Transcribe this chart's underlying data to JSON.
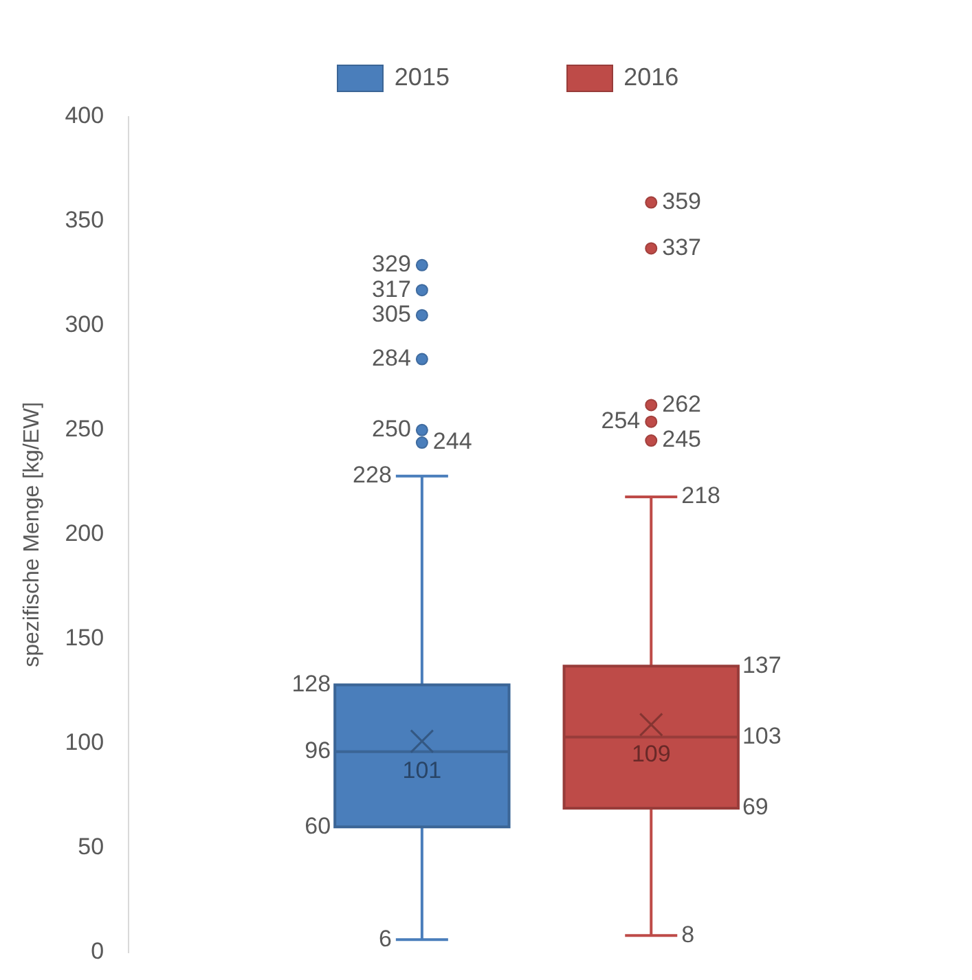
{
  "chart_data": {
    "type": "box",
    "categories": [
      "2015",
      "2016"
    ],
    "colors": [
      "#4a7ebb",
      "#be4b48"
    ],
    "ylabel": "spezifische Menge [kg/EW]",
    "ylim": [
      0,
      400
    ],
    "yticks": [
      0,
      50,
      100,
      150,
      200,
      250,
      300,
      350,
      400
    ],
    "boxes": [
      {
        "low": 6,
        "q1": 60,
        "median": 96,
        "q3": 128,
        "high": 228,
        "mean": 101,
        "outliers": [
          329,
          317,
          305,
          284,
          250,
          244
        ]
      },
      {
        "low": 8,
        "q1": 69,
        "median": 103,
        "q3": 137,
        "high": 218,
        "mean": 109,
        "outliers": [
          359,
          337,
          262,
          254,
          245
        ]
      }
    ],
    "annotations": [
      "228",
      "6",
      "128",
      "60",
      "96",
      "101",
      "329",
      "317",
      "305",
      "284",
      "250",
      "244",
      "218",
      "8",
      "137",
      "69",
      "103",
      "109",
      "359",
      "337",
      "262",
      "254",
      "245"
    ]
  }
}
